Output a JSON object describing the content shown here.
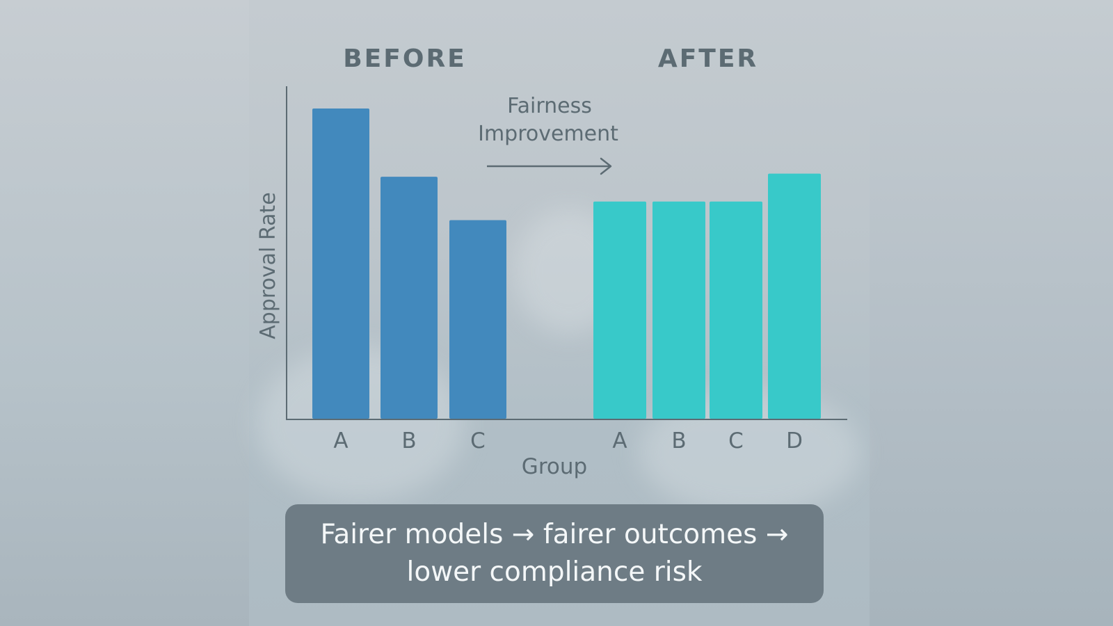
{
  "chart_data": {
    "type": "bar",
    "ylabel": "Approval Rate",
    "xlabel": "Group",
    "grid": false,
    "ylim": [
      0,
      100
    ],
    "panels": [
      {
        "title": "BEFORE",
        "categories": [
          "A",
          "B",
          "C"
        ],
        "values": [
          100,
          78,
          64
        ],
        "color": "#4289bd"
      },
      {
        "title": "AFTER",
        "categories": [
          "A",
          "B",
          "C",
          "D"
        ],
        "values": [
          70,
          70,
          70,
          79
        ],
        "color": "#38c9c9"
      }
    ],
    "annotation": {
      "line1": "Fairness",
      "line2": "Improvement"
    }
  },
  "caption": {
    "line1": "Fairer models → fairer outcomes →",
    "line2": "lower compliance risk"
  },
  "colors": {
    "text": "#5c6b73",
    "axis": "#5c6b73",
    "before_bar": "#4289bd",
    "after_bar": "#38c9c9",
    "caption_bg": "#6e7c85",
    "caption_text": "#f4f7f8"
  }
}
